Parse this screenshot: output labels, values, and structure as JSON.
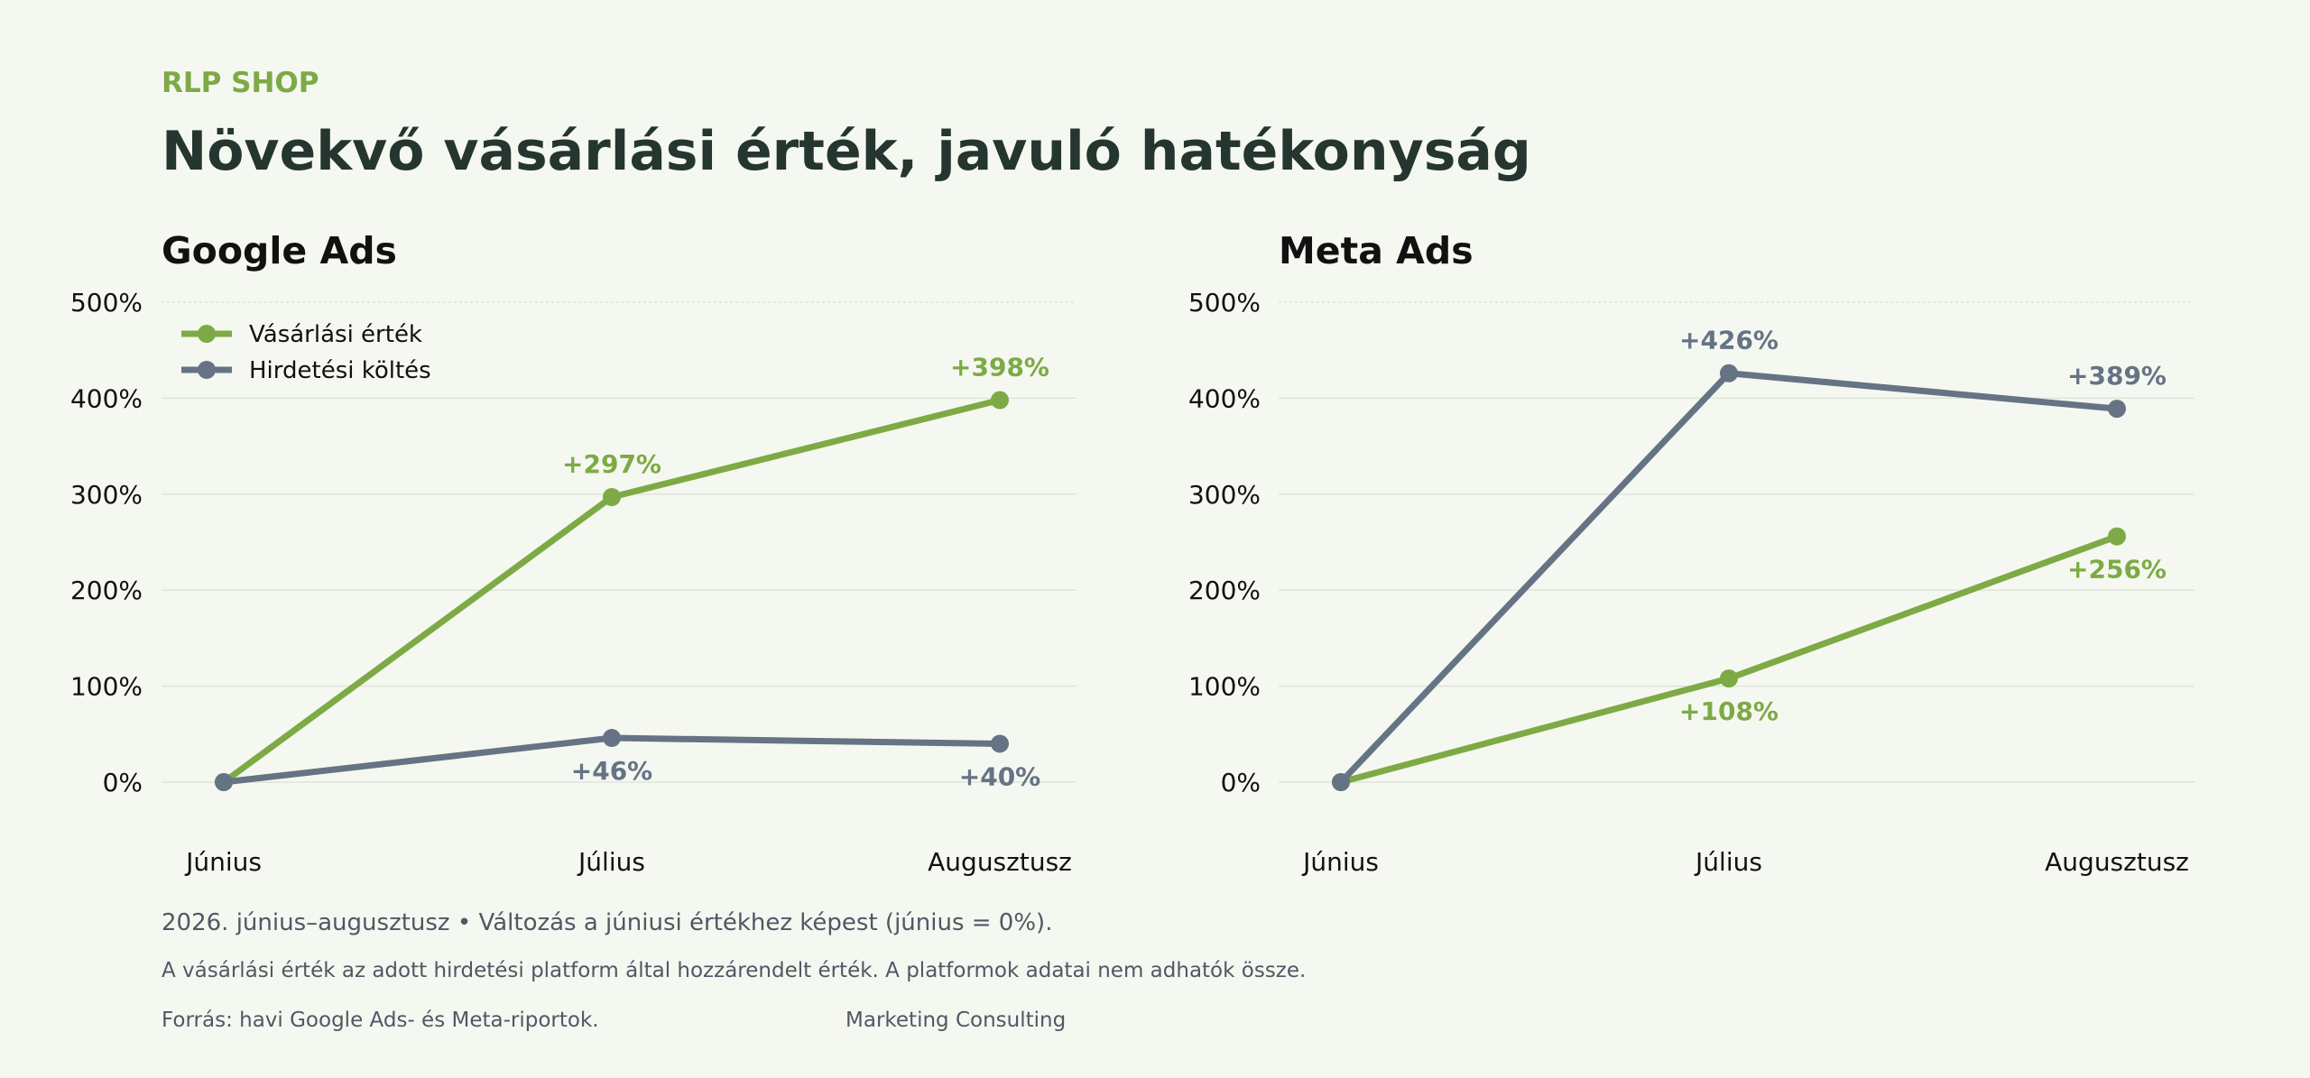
{
  "brand": "RLP SHOP",
  "headline": "Növekvő vásárlási érték, javuló hatékonyság",
  "colors": {
    "purchase": "#7daa45",
    "spend": "#657385",
    "grid": "#dfe4da",
    "background": "#f5f8f1"
  },
  "chart_data": [
    {
      "type": "line",
      "title": "Google Ads",
      "categories": [
        "Június",
        "Július",
        "Augusztusz"
      ],
      "yticks": [
        "0%",
        "100%",
        "200%",
        "300%",
        "400%",
        "500%"
      ],
      "ylim": [
        0,
        500
      ],
      "grid": true,
      "legend": {
        "placement": "top-left",
        "entries": [
          "Vásárlási érték",
          "Hirdetési költés"
        ]
      },
      "series": [
        {
          "name": "Vásárlási érték",
          "values": [
            0,
            297,
            398
          ],
          "labels": [
            "",
            "+297%",
            "+398%"
          ],
          "color": "#7daa45"
        },
        {
          "name": "Hirdetési költés",
          "values": [
            0,
            46,
            40
          ],
          "labels": [
            "",
            "+46%",
            "+40%"
          ],
          "color": "#657385"
        }
      ]
    },
    {
      "type": "line",
      "title": "Meta Ads",
      "categories": [
        "Június",
        "Július",
        "Augusztusz"
      ],
      "yticks": [
        "0%",
        "100%",
        "200%",
        "300%",
        "400%",
        "500%"
      ],
      "ylim": [
        0,
        500
      ],
      "grid": true,
      "series": [
        {
          "name": "Vásárlási érték",
          "values": [
            0,
            108,
            256
          ],
          "labels": [
            "",
            "+108%",
            "+256%"
          ],
          "color": "#7daa45"
        },
        {
          "name": "Hirdetési költés",
          "values": [
            0,
            426,
            389
          ],
          "labels": [
            "",
            "+426%",
            "+389%"
          ],
          "color": "#657385"
        }
      ]
    }
  ],
  "footer": {
    "line1": "2026. június–augusztusz • Változás a júniusi értékhez képest (június = 0%).",
    "line2": "A vásárlási érték az adott hirdetési platform által hozzárendelt érték. A platformok adatai nem adhatók össze.",
    "source": "Forrás: havi Google Ads- és Meta-riportok.",
    "credit": "Marketing Consulting"
  }
}
